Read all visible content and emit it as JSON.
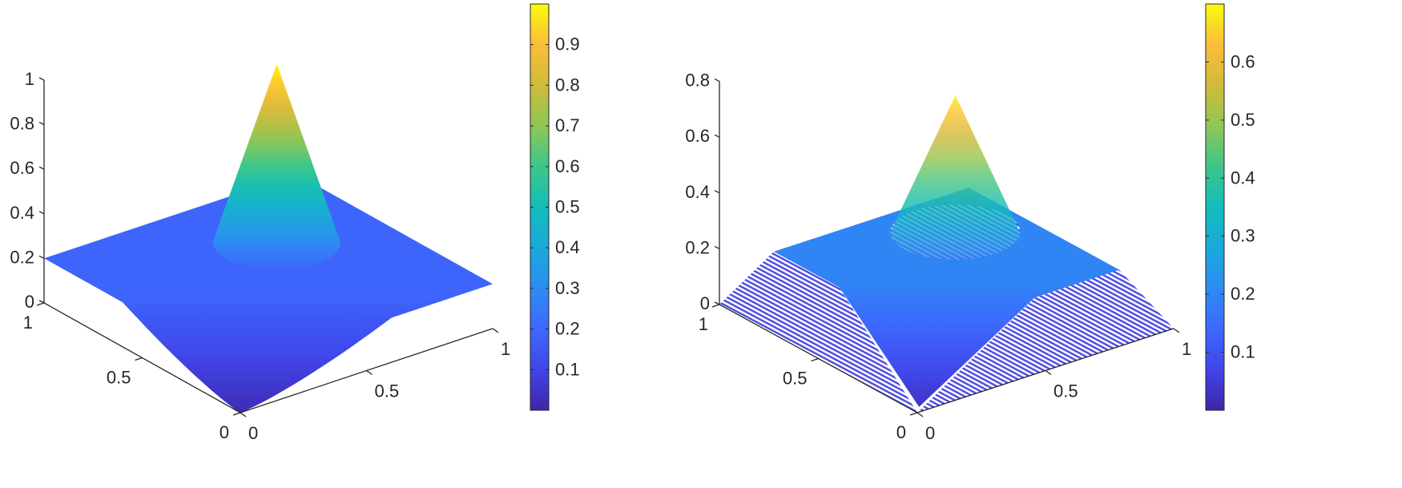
{
  "chart_data": [
    {
      "type": "surface",
      "title": "",
      "xlabel": "",
      "ylabel": "",
      "zlabel": "",
      "xlim": [
        0,
        1
      ],
      "ylim": [
        0,
        1
      ],
      "zlim": [
        0,
        1
      ],
      "x_ticks": [
        "0",
        "0.5",
        "1"
      ],
      "x_tick_values": [
        0,
        0.5,
        1
      ],
      "y_ticks": [
        "0",
        "0.5",
        "1"
      ],
      "y_tick_values": [
        0,
        0.5,
        1
      ],
      "z_ticks": [
        "0",
        "0.2",
        "0.4",
        "0.6",
        "0.8",
        "1"
      ],
      "z_tick_values": [
        0,
        0.2,
        0.4,
        0.6,
        0.8,
        1
      ],
      "surface": {
        "style": "solid",
        "plateau_value": 0.2,
        "peak_value": 1.0,
        "peak_center": [
          0.65,
          0.65
        ],
        "peak_radius": 0.2,
        "corner_min_value": 0,
        "plateau_start_along_edges": 0.6
      },
      "colorbar": {
        "colormap": "parula",
        "clim": [
          0,
          1
        ],
        "ticks": [
          "0.1",
          "0.2",
          "0.3",
          "0.4",
          "0.5",
          "0.6",
          "0.7",
          "0.8",
          "0.9"
        ],
        "tick_values": [
          0.1,
          0.2,
          0.3,
          0.4,
          0.5,
          0.6,
          0.7,
          0.8,
          0.9
        ]
      }
    },
    {
      "type": "surface",
      "title": "",
      "xlabel": "",
      "ylabel": "",
      "zlabel": "",
      "xlim": [
        0,
        1
      ],
      "ylim": [
        0,
        1
      ],
      "zlim": [
        0,
        0.8
      ],
      "x_ticks": [
        "0",
        "0.5",
        "1"
      ],
      "x_tick_values": [
        0,
        0.5,
        1
      ],
      "y_ticks": [
        "0",
        "0.5",
        "1"
      ],
      "y_tick_values": [
        0,
        0.5,
        1
      ],
      "z_ticks": [
        "0",
        "0.2",
        "0.4",
        "0.6",
        "0.8"
      ],
      "z_tick_values": [
        0,
        0.2,
        0.4,
        0.6,
        0.8
      ],
      "surface": {
        "style": "mesh",
        "plateau_value": 0.2,
        "peak_value": 0.69,
        "peak_center": [
          0.65,
          0.65
        ],
        "peak_radius": 0.2,
        "corner_min_value": 0,
        "edge_ramp_width": 0.12,
        "plateau_start_along_edges": 0.55
      },
      "colorbar": {
        "colormap": "parula",
        "clim": [
          0,
          0.7
        ],
        "ticks": [
          "0.1",
          "0.2",
          "0.3",
          "0.4",
          "0.5",
          "0.6"
        ],
        "tick_values": [
          0.1,
          0.2,
          0.3,
          0.4,
          0.5,
          0.6
        ]
      }
    }
  ],
  "colors": {
    "axis": "#262626",
    "parula": [
      "#3e26a8",
      "#4145e8",
      "#3d68fe",
      "#2d8cf2",
      "#1aa9db",
      "#13bdba",
      "#3ec68a",
      "#8ec755",
      "#d0bb3a",
      "#fbbd3a",
      "#f9fb0e"
    ]
  }
}
